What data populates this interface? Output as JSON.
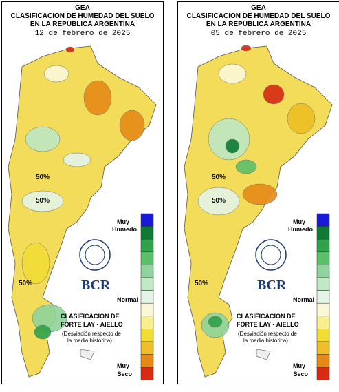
{
  "panels": [
    {
      "header": [
        "GEA",
        "CLASIFICACION DE HUMEDAD DEL SUELO",
        "EN LA REPUBLICA ARGENTINA"
      ],
      "date": "12 de febrero de 2025",
      "contour_labels": [
        "50%",
        "50%",
        "50%"
      ],
      "legend": {
        "top": [
          "Muy",
          "Humedo"
        ],
        "middle": "Normal",
        "bottom": [
          "Muy",
          "Seco"
        ]
      },
      "logo": "BCR",
      "method": [
        "CLASIFICACION DE",
        "FORTE LAY - AIELLO"
      ],
      "note": [
        "(Desviación respecto de",
        "la media histórica)"
      ]
    },
    {
      "header": [
        "GEA",
        "CLASIFICACION DE HUMEDAD DEL SUELO",
        "EN LA REPUBLICA ARGENTINA"
      ],
      "date": "05 de febrero de 2025",
      "contour_labels": [
        "50%",
        "50%",
        "50%"
      ],
      "legend": {
        "top": [
          "Muy",
          "Humedo"
        ],
        "middle": "Normal",
        "bottom": [
          "Muy",
          "Seco"
        ]
      },
      "logo": "BCR",
      "method": [
        "CLASIFICACION DE",
        "FORTE LAY - AIELLO"
      ],
      "note": [
        "(Desviación respecto de",
        "la media histórica)"
      ]
    }
  ],
  "scale_colors": [
    "#1a1ad6",
    "#0e7a35",
    "#2fa24c",
    "#5cbf6a",
    "#8fd49a",
    "#bfe8c4",
    "#e4f4e6",
    "#fbf8d8",
    "#f8ef8e",
    "#f1dc36",
    "#eebf24",
    "#e58a16",
    "#d62a12"
  ]
}
